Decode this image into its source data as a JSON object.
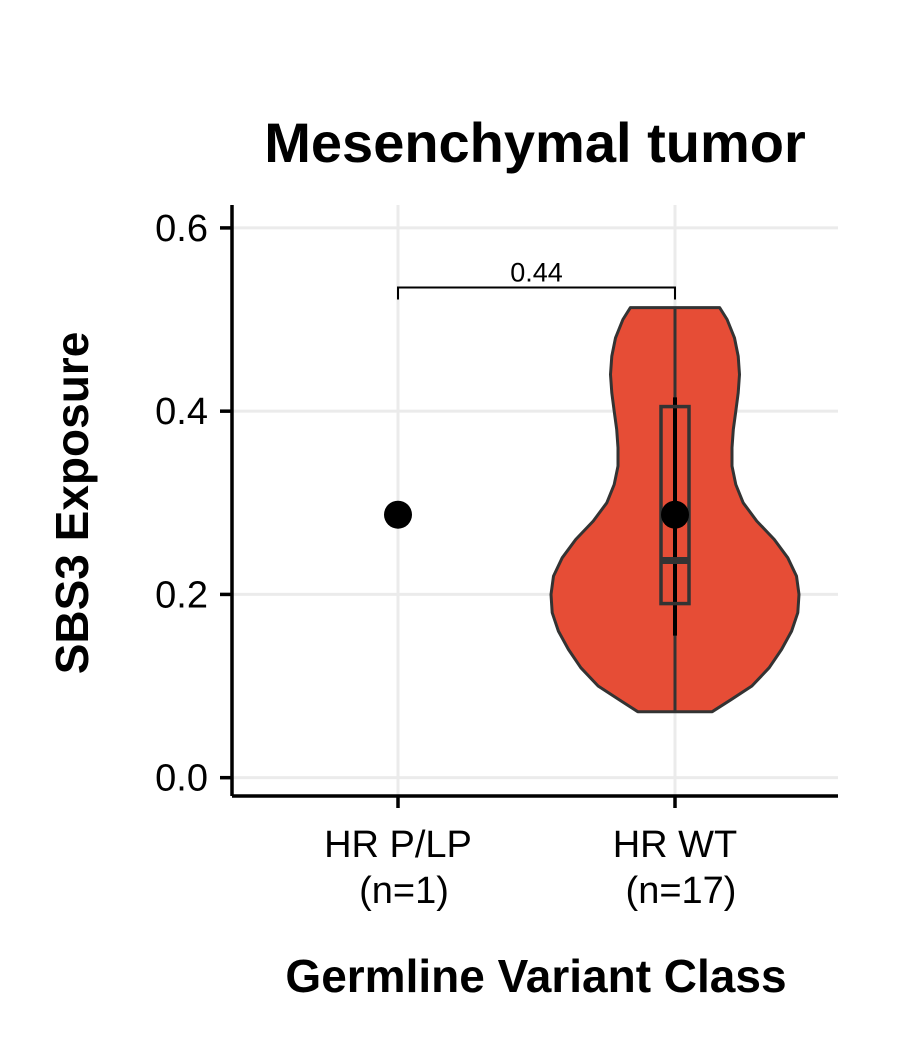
{
  "chart_data": {
    "type": "violin",
    "title": "Mesenchymal tumor",
    "xlabel": "Germline Variant Class",
    "ylabel": "SBS3 Exposure",
    "ylim": [
      -0.02,
      0.625
    ],
    "yticks": [
      0.0,
      0.2,
      0.4,
      0.6
    ],
    "ytick_labels": [
      "0.0",
      "0.2",
      "0.4",
      "0.6"
    ],
    "grid": true,
    "categories": [
      {
        "key": "hr_plp",
        "label_line1": "HR P/LP",
        "label_line2": "(n=1)",
        "n": 1,
        "point": 0.287
      },
      {
        "key": "hr_wt",
        "label_line1": "HR WT",
        "label_line2": "(n=17)",
        "n": 17,
        "fill": "#e64d36",
        "outline": "#333333",
        "violin": {
          "min": 0.072,
          "max": 0.513,
          "profile": [
            [
              0.072,
              0.3
            ],
            [
              0.085,
              0.45
            ],
            [
              0.1,
              0.62
            ],
            [
              0.12,
              0.76
            ],
            [
              0.14,
              0.86
            ],
            [
              0.16,
              0.94
            ],
            [
              0.18,
              0.99
            ],
            [
              0.2,
              1.0
            ],
            [
              0.22,
              0.98
            ],
            [
              0.24,
              0.91
            ],
            [
              0.26,
              0.8
            ],
            [
              0.28,
              0.66
            ],
            [
              0.3,
              0.55
            ],
            [
              0.32,
              0.49
            ],
            [
              0.34,
              0.46
            ],
            [
              0.36,
              0.46
            ],
            [
              0.38,
              0.47
            ],
            [
              0.4,
              0.49
            ],
            [
              0.42,
              0.51
            ],
            [
              0.44,
              0.52
            ],
            [
              0.46,
              0.51
            ],
            [
              0.48,
              0.48
            ],
            [
              0.5,
              0.42
            ],
            [
              0.513,
              0.36
            ]
          ]
        },
        "box": {
          "q1": 0.19,
          "median": 0.237,
          "q3": 0.405,
          "whisker_low": 0.155,
          "whisker_high": 0.415
        },
        "mean_point": 0.287
      }
    ],
    "comparison": {
      "label": "0.44",
      "y": 0.535,
      "from": "hr_plp",
      "to": "hr_wt"
    }
  }
}
